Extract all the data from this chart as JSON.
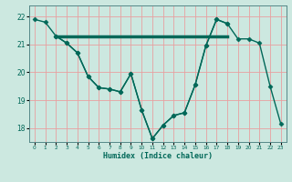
{
  "background_color": "#cce8e0",
  "grid_color": "#e8a0a0",
  "line_color": "#006858",
  "xlabel": "Humidex (Indice chaleur)",
  "xlim": [
    -0.5,
    23.5
  ],
  "ylim": [
    17.5,
    22.4
  ],
  "yticks": [
    18,
    19,
    20,
    21,
    22
  ],
  "xticks": [
    0,
    1,
    2,
    3,
    4,
    5,
    6,
    7,
    8,
    9,
    10,
    11,
    12,
    13,
    14,
    15,
    16,
    17,
    18,
    19,
    20,
    21,
    22,
    23
  ],
  "series": [
    {
      "x": [
        0,
        1,
        2,
        3,
        4,
        5,
        6,
        7,
        8,
        9,
        10,
        11,
        12,
        13,
        14,
        15,
        16,
        17,
        18,
        19,
        20,
        21,
        22,
        23
      ],
      "y": [
        21.9,
        21.8,
        21.3,
        21.05,
        20.7,
        19.85,
        19.45,
        19.4,
        19.3,
        19.95,
        18.65,
        17.62,
        18.1,
        18.45,
        18.55,
        19.55,
        20.95,
        21.9,
        21.75,
        21.2,
        21.2,
        21.05,
        19.5,
        18.15
      ],
      "marker": "D",
      "markersize": 2.5,
      "linewidth": 1.0,
      "linestyle": "-"
    },
    {
      "x": [
        2,
        3,
        4,
        5,
        6,
        7,
        8,
        9,
        10,
        11,
        12,
        13,
        14,
        15,
        16,
        17,
        18
      ],
      "y": [
        21.3,
        21.05,
        20.7,
        19.85,
        19.45,
        19.4,
        19.3,
        19.95,
        18.65,
        17.62,
        18.1,
        18.45,
        18.55,
        19.55,
        20.95,
        21.9,
        21.75
      ],
      "marker": "D",
      "markersize": 2.5,
      "linewidth": 1.0,
      "linestyle": "-"
    },
    {
      "x": [
        2,
        18
      ],
      "y": [
        21.3,
        21.3
      ],
      "marker": null,
      "markersize": 0,
      "linewidth": 2.5,
      "linestyle": "-"
    }
  ]
}
